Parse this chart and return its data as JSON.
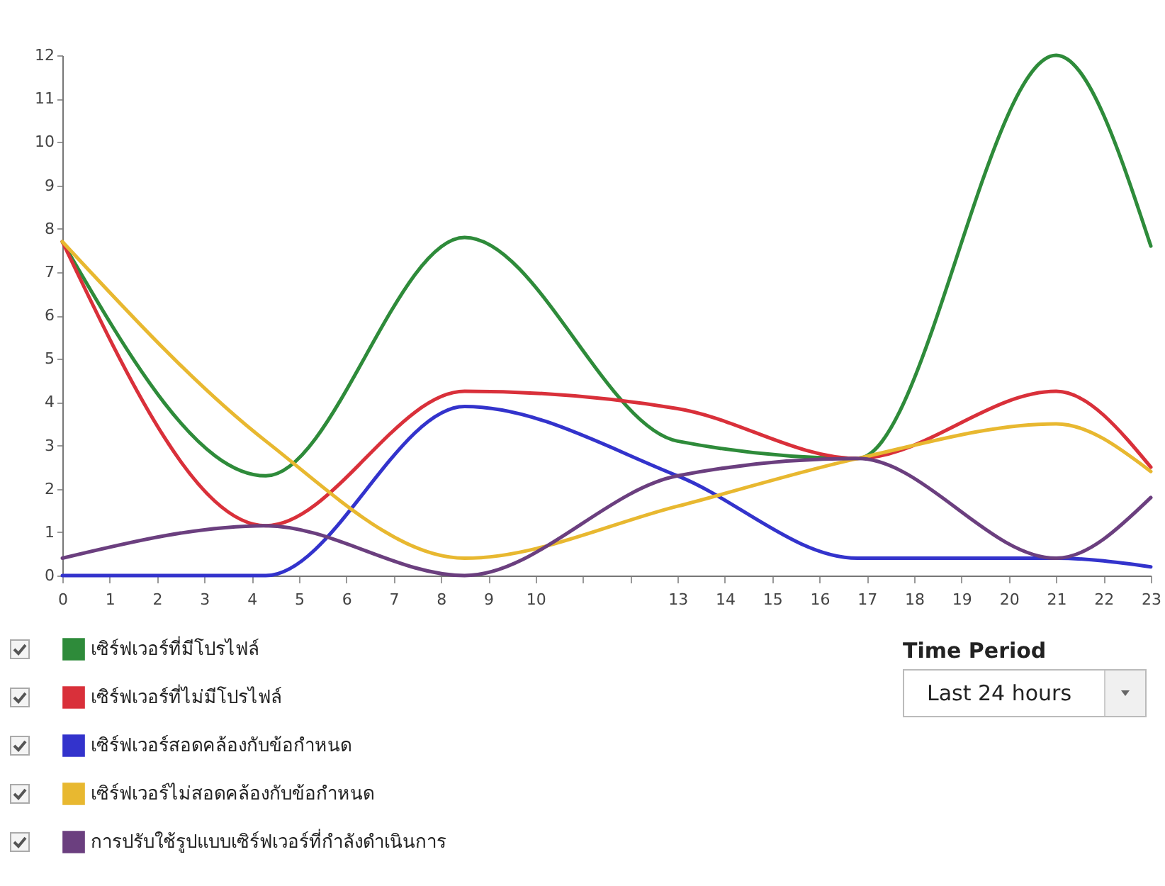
{
  "chart_data": {
    "type": "line",
    "xlim": [
      0,
      23
    ],
    "ylim": [
      0,
      12
    ],
    "xticks": [
      0,
      1,
      2,
      3,
      4,
      5,
      6,
      7,
      8,
      9,
      10,
      {
        "value": 11,
        "label": null
      },
      {
        "value": 12,
        "label": null
      },
      13,
      14,
      15,
      16,
      17,
      18,
      19,
      20,
      21,
      22,
      23
    ],
    "yticks": [
      0,
      1,
      2,
      3,
      4,
      5,
      6,
      7,
      8,
      9,
      10,
      11,
      12
    ],
    "grid": false,
    "legend": "bottom",
    "marker": "none",
    "line_style": "solid",
    "annotations": [
      "Time Period",
      "Last 24 hours"
    ],
    "series": [
      {
        "name": "เซิร์ฟเวอร์ที่มีโปรไฟล์",
        "color": "#2e8b3a",
        "x": [
          0,
          4.3,
          8.5,
          13,
          16.8,
          21,
          23
        ],
        "values": [
          7.7,
          2.3,
          7.8,
          3.1,
          2.7,
          12,
          7.6
        ]
      },
      {
        "name": "เซิร์ฟเวอร์ที่ไม่มีโปรไฟล์",
        "color": "#d9303a",
        "x": [
          0,
          4.3,
          8.5,
          13,
          16.8,
          21,
          23
        ],
        "values": [
          7.7,
          1.15,
          4.25,
          3.85,
          2.7,
          4.25,
          2.5
        ]
      },
      {
        "name": "เซิร์ฟเวอร์สอดคล้องกับข้อกำหนด",
        "color": "#3333cc",
        "x": [
          0,
          4.3,
          8.5,
          13,
          16.8,
          21,
          23
        ],
        "values": [
          0,
          0,
          3.9,
          2.3,
          0.4,
          0.4,
          0.2
        ]
      },
      {
        "name": "เซิร์ฟเวอร์ไม่สอดคล้องกับข้อกำหนด",
        "color": "#e8b830",
        "x": [
          0,
          4.3,
          8.5,
          13,
          16.8,
          21,
          23
        ],
        "values": [
          7.7,
          3.1,
          0.4,
          1.6,
          2.7,
          3.5,
          2.4
        ]
      },
      {
        "name": "การปรับใช้รูปแบบเซิร์ฟเวอร์ที่กำลังดำเนินการ",
        "color": "#6b3f7f",
        "x": [
          0,
          4.3,
          8.5,
          13,
          16.8,
          21,
          23
        ],
        "values": [
          0.4,
          1.15,
          0,
          2.3,
          2.7,
          0.4,
          1.8
        ]
      }
    ]
  }
}
